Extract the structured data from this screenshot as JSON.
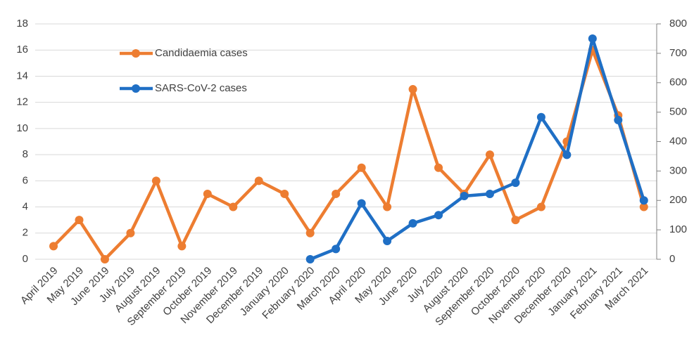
{
  "chart_data": {
    "type": "line",
    "categories": [
      "April 2019",
      "May 2019",
      "June 2019",
      "July 2019",
      "August 2019",
      "September 2019",
      "October 2019",
      "November 2019",
      "December 2019",
      "January 2020",
      "February 2020",
      "March 2020",
      "April 2020",
      "May 2020",
      "June 2020",
      "July 2020",
      "August 2020",
      "September 2020",
      "October 2020",
      "November 2020",
      "December 2020",
      "January 2021",
      "February 2021",
      "March 2021"
    ],
    "series": [
      {
        "name": "Candidaemia cases",
        "color": "#ed7d31",
        "values": [
          1,
          3,
          0,
          2,
          6,
          1,
          5,
          4,
          6,
          5,
          2,
          5,
          7,
          4,
          13,
          7,
          5,
          8,
          3,
          4,
          9,
          16,
          11,
          4
        ]
      },
      {
        "name": "SARS-CoV-2 cases",
        "color": "#1f6fc5",
        "axis": "y2",
        "values": [
          null,
          null,
          null,
          null,
          null,
          null,
          null,
          null,
          null,
          null,
          0,
          35,
          190,
          62,
          122,
          150,
          215,
          222,
          260,
          483,
          355,
          750,
          473,
          200
        ]
      }
    ],
    "ylim": [
      0,
      18
    ],
    "yticks": [
      0,
      2,
      4,
      6,
      8,
      10,
      12,
      14,
      16,
      18
    ],
    "y2lim": [
      0,
      800
    ],
    "y2ticks": [
      0,
      100,
      200,
      300,
      400,
      500,
      600,
      700,
      800
    ],
    "grid": true
  }
}
